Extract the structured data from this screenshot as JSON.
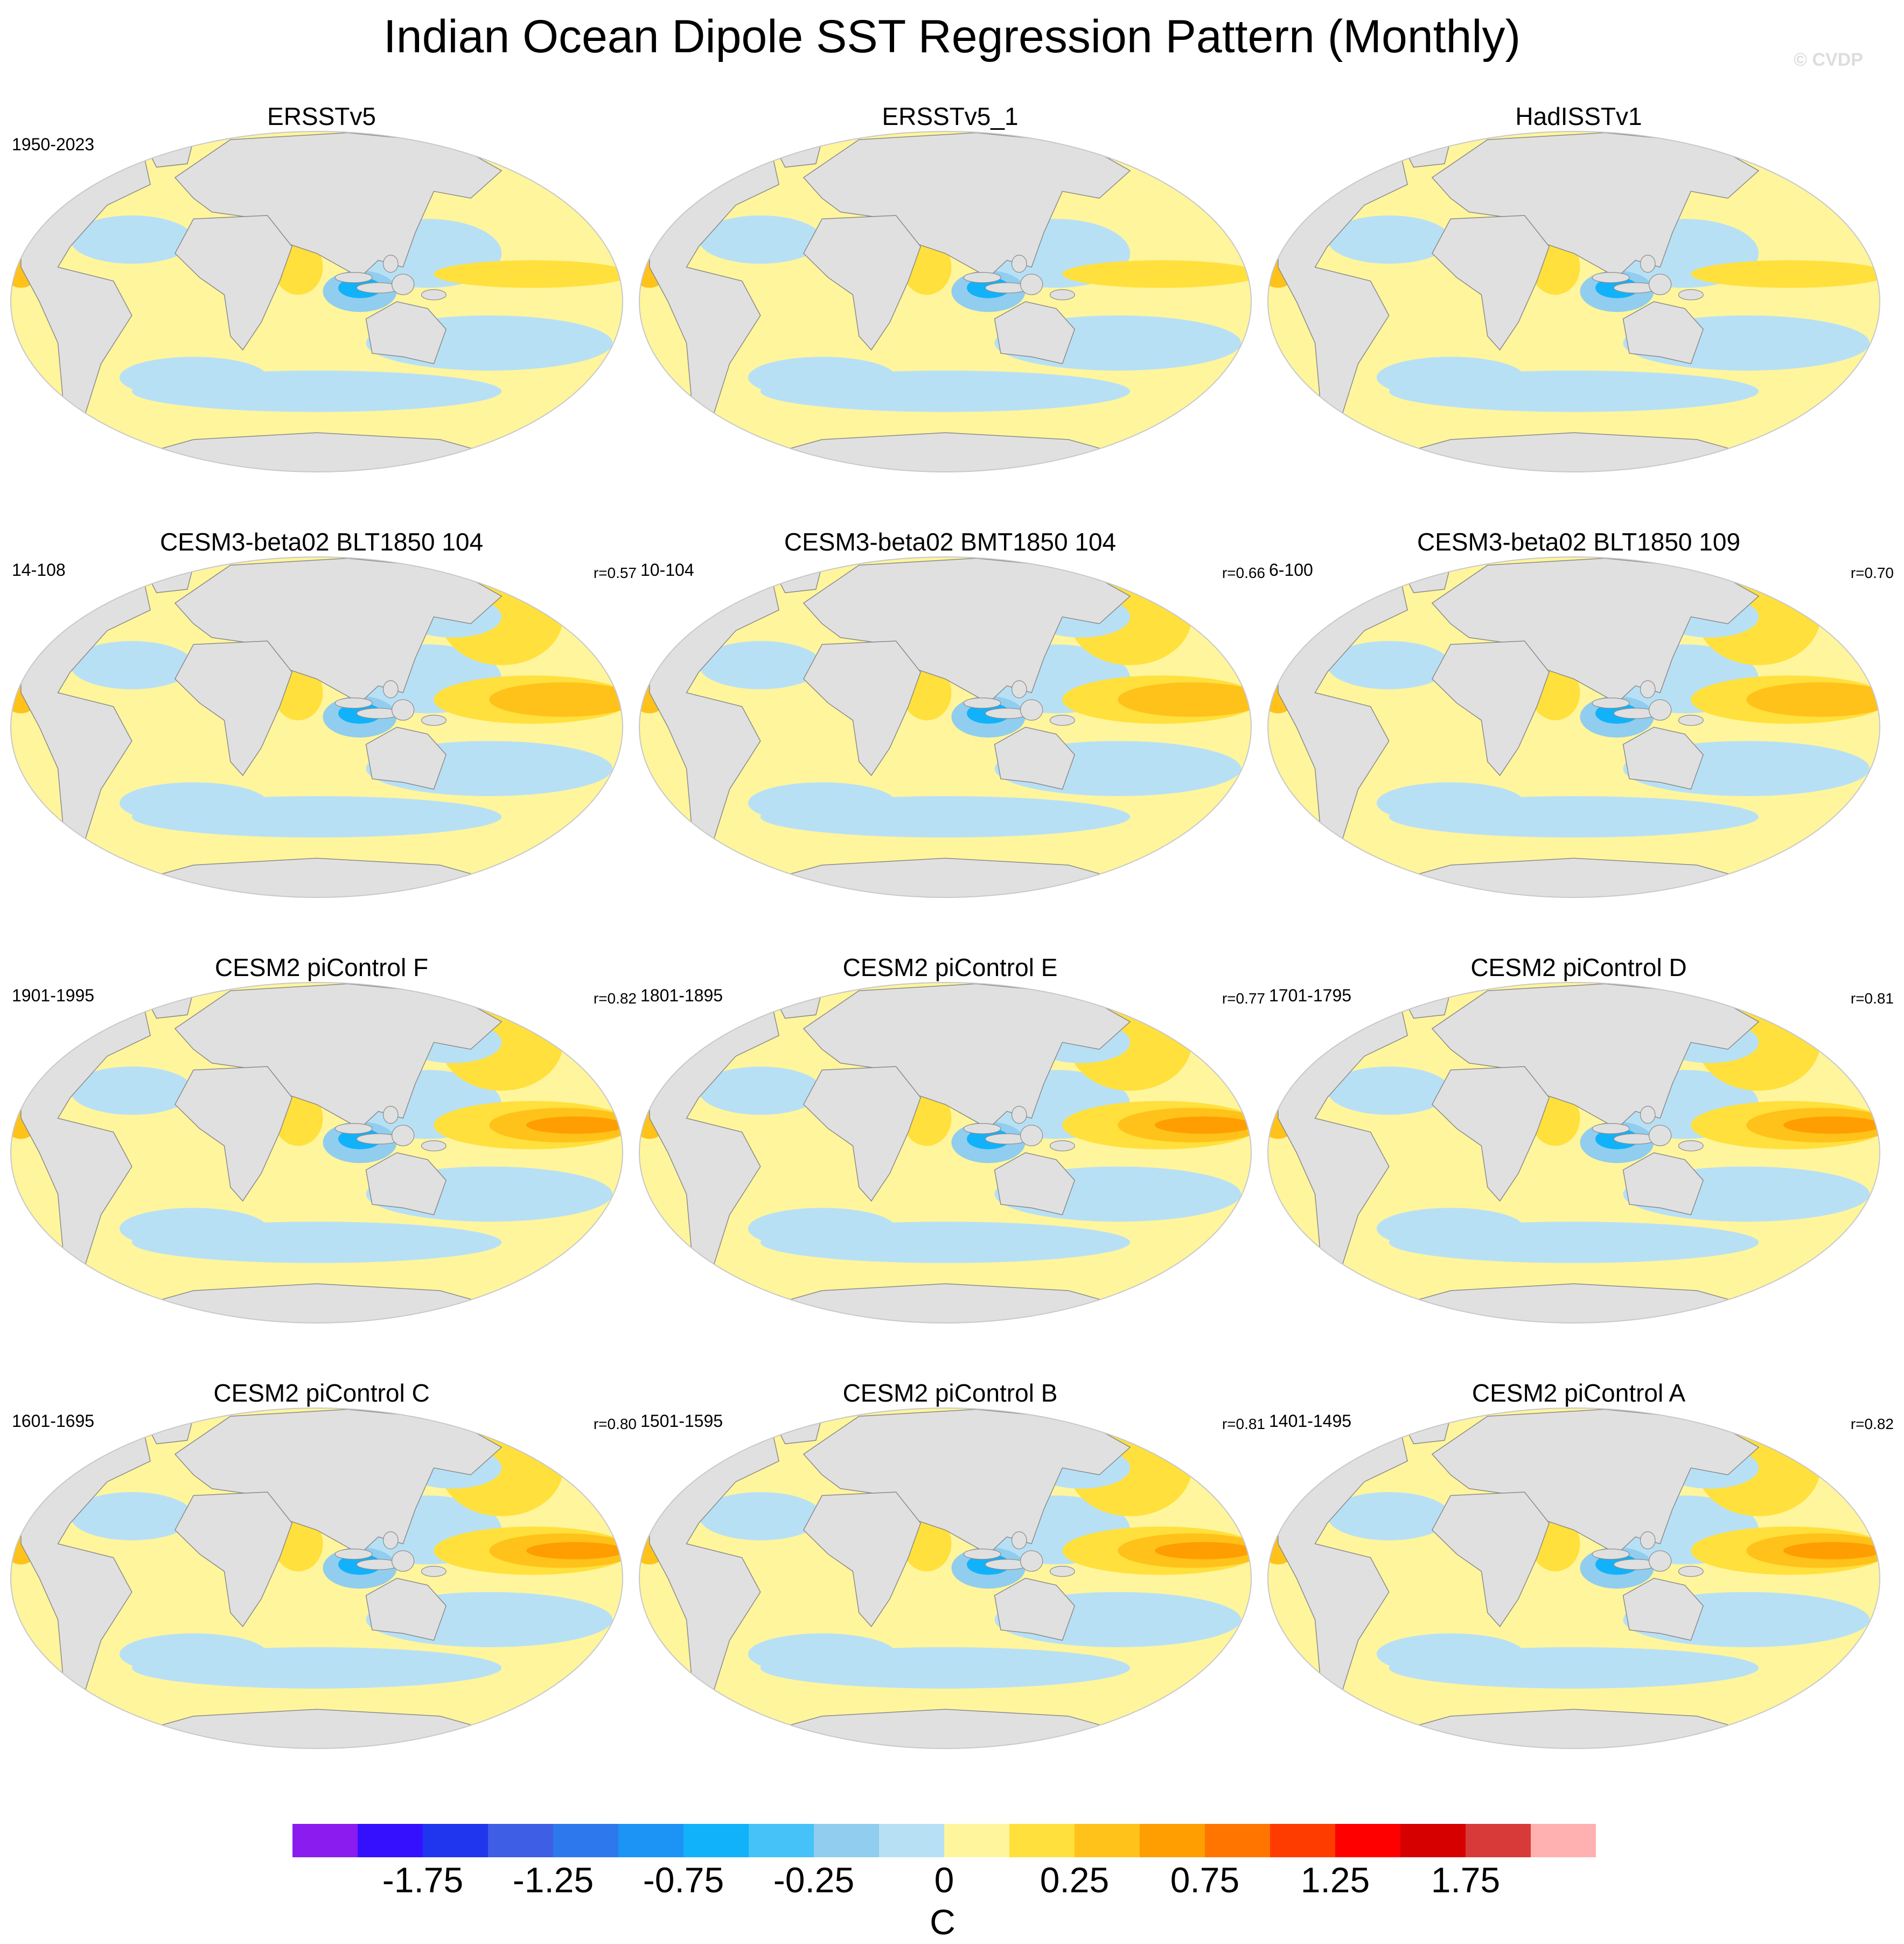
{
  "figure": {
    "title": "Indian Ocean Dipole SST Regression Pattern (Monthly)",
    "watermark": "© CVDP"
  },
  "colors": {
    "land": "#e0e0e0",
    "coast": "#8a8a8a",
    "neutral_pos": "#fff59d",
    "levels": [
      "#8b1cf0",
      "#3410ff",
      "#1f36ee",
      "#3e5ee6",
      "#2e78ee",
      "#1c94f5",
      "#12b2fa",
      "#45c2f7",
      "#91cdee",
      "#b8e0f5",
      "#fff59d",
      "#ffe03c",
      "#ffc21a",
      "#ff9e00",
      "#ff7500",
      "#ff3c00",
      "#ff0000",
      "#d60000",
      "#d83a3a",
      "#ffb0b0"
    ]
  },
  "panels": [
    {
      "title": "ERSSTv5",
      "years": "1950-2023",
      "r": ""
    },
    {
      "title": "ERSSTv5_1",
      "years": "",
      "r": ""
    },
    {
      "title": "HadISSTv1",
      "years": "",
      "r": ""
    },
    {
      "title": "CESM3-beta02 BLT1850 104",
      "years": "14-108",
      "r": "r=0.57"
    },
    {
      "title": "CESM3-beta02 BMT1850 104",
      "years": "10-104",
      "r": "r=0.66"
    },
    {
      "title": "CESM3-beta02 BLT1850 109",
      "years": "6-100",
      "r": "r=0.70"
    },
    {
      "title": "CESM2 piControl F",
      "years": "1901-1995",
      "r": "r=0.82"
    },
    {
      "title": "CESM2 piControl E",
      "years": "1801-1895",
      "r": "r=0.77"
    },
    {
      "title": "CESM2 piControl D",
      "years": "1701-1795",
      "r": "r=0.81"
    },
    {
      "title": "CESM2 piControl C",
      "years": "1601-1695",
      "r": "r=0.80"
    },
    {
      "title": "CESM2 piControl B",
      "years": "1501-1595",
      "r": "r=0.81"
    },
    {
      "title": "CESM2 piControl A",
      "years": "1401-1495",
      "r": "r=0.82"
    }
  ],
  "colorbar": {
    "tick_labels": [
      "-1.75",
      "-1.25",
      "-0.75",
      "-0.25",
      "0",
      "0.25",
      "0.75",
      "1.25",
      "1.75"
    ],
    "units": "C"
  }
}
